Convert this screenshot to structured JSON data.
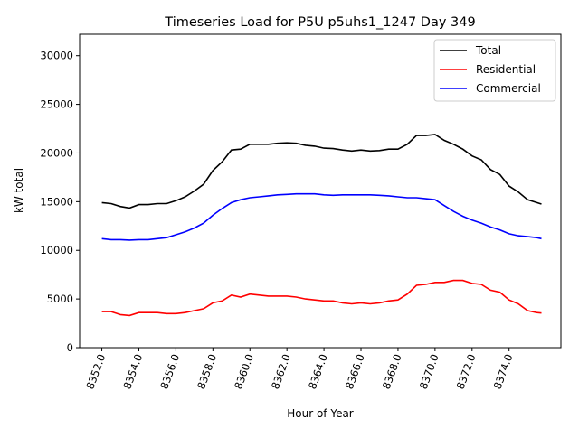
{
  "chart_data": {
    "type": "line",
    "title": "Timeseries Load for P5U p5uhs1_1247  Day 349",
    "xlabel": "Hour of Year",
    "ylabel": "kW total",
    "xlim": [
      8350.8,
      8376.8
    ],
    "ylim": [
      0,
      32200
    ],
    "xticks": [
      8352,
      8354,
      8356,
      8358,
      8360,
      8362,
      8364,
      8366,
      8368,
      8370,
      8372,
      8374
    ],
    "xtick_labels": [
      "8352.0",
      "8354.0",
      "8356.0",
      "8358.0",
      "8360.0",
      "8362.0",
      "8364.0",
      "8366.0",
      "8368.0",
      "8370.0",
      "8372.0",
      "8374.0"
    ],
    "yticks": [
      0,
      5000,
      10000,
      15000,
      20000,
      25000,
      30000
    ],
    "ytick_labels": [
      "0",
      "5000",
      "10000",
      "15000",
      "20000",
      "25000",
      "30000"
    ],
    "legend_position": "top-right",
    "x": [
      8352,
      8352.5,
      8353,
      8353.5,
      8354,
      8354.5,
      8355,
      8355.5,
      8356,
      8356.5,
      8357,
      8357.5,
      8358,
      8358.5,
      8359,
      8359.5,
      8360,
      8360.5,
      8361,
      8361.5,
      8362,
      8362.5,
      8363,
      8363.5,
      8364,
      8364.5,
      8365,
      8365.5,
      8366,
      8366.5,
      8367,
      8367.5,
      8368,
      8368.5,
      8369,
      8369.5,
      8370,
      8370.5,
      8371,
      8371.5,
      8372,
      8372.5,
      8373,
      8373.5,
      8374,
      8374.5,
      8375,
      8375.5,
      8375.75
    ],
    "series": [
      {
        "name": "Total",
        "color": "#000000",
        "values": [
          14900,
          14800,
          14500,
          14350,
          14700,
          14700,
          14800,
          14800,
          15100,
          15500,
          16100,
          16800,
          18200,
          19100,
          20300,
          20400,
          20900,
          20900,
          20900,
          21000,
          21050,
          21000,
          20800,
          20700,
          20500,
          20450,
          20300,
          20200,
          20300,
          20200,
          20250,
          20400,
          20400,
          20900,
          21800,
          21800,
          21900,
          21300,
          20900,
          20400,
          19700,
          19300,
          18300,
          17800,
          16600,
          16000,
          15200,
          14900,
          14750
        ]
      },
      {
        "name": "Residential",
        "color": "#ff0000",
        "values": [
          3700,
          3700,
          3400,
          3300,
          3600,
          3600,
          3600,
          3500,
          3500,
          3600,
          3800,
          4000,
          4600,
          4800,
          5400,
          5200,
          5500,
          5400,
          5300,
          5300,
          5300,
          5200,
          5000,
          4900,
          4800,
          4800,
          4600,
          4500,
          4600,
          4500,
          4600,
          4800,
          4900,
          5500,
          6400,
          6500,
          6700,
          6700,
          6900,
          6900,
          6600,
          6500,
          5900,
          5700,
          4900,
          4500,
          3800,
          3600,
          3550
        ]
      },
      {
        "name": "Commercial",
        "color": "#0000ff",
        "values": [
          11200,
          11100,
          11100,
          11050,
          11100,
          11100,
          11200,
          11300,
          11600,
          11900,
          12300,
          12800,
          13600,
          14300,
          14900,
          15200,
          15400,
          15500,
          15600,
          15700,
          15750,
          15800,
          15800,
          15800,
          15700,
          15650,
          15700,
          15700,
          15700,
          15700,
          15650,
          15600,
          15500,
          15400,
          15400,
          15300,
          15200,
          14600,
          14000,
          13500,
          13100,
          12800,
          12400,
          12100,
          11700,
          11500,
          11400,
          11300,
          11200
        ]
      }
    ]
  }
}
